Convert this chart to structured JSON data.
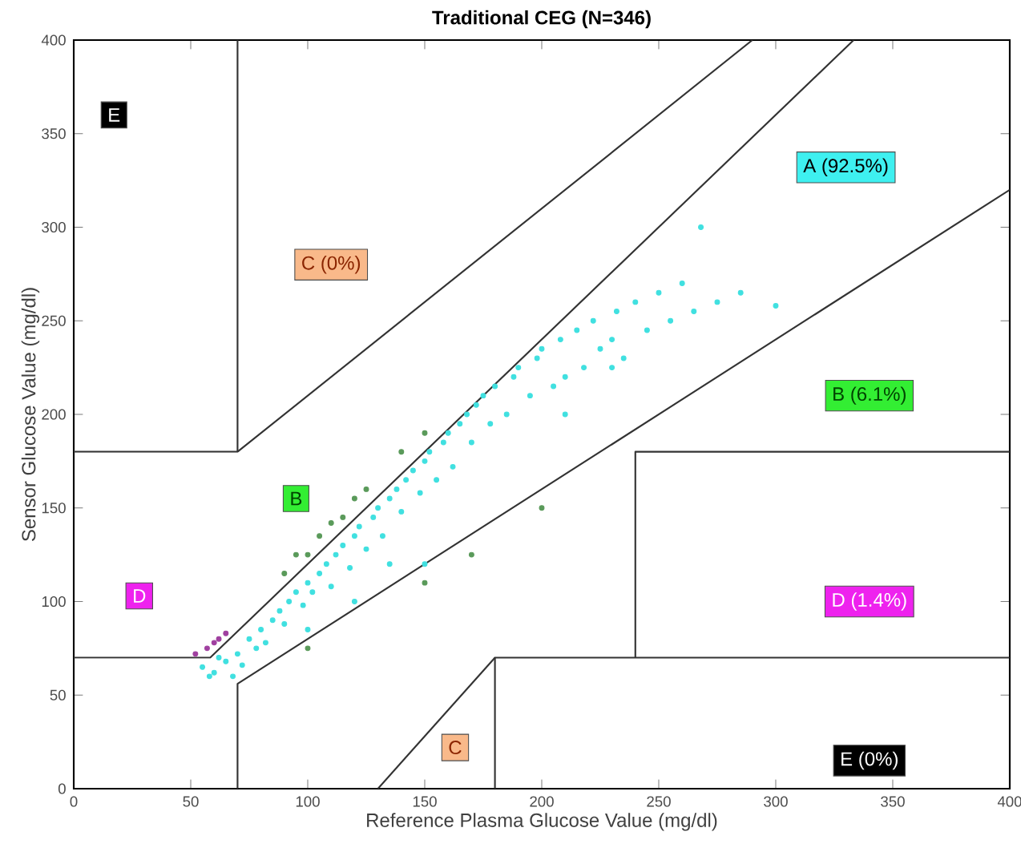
{
  "chart_data": {
    "type": "scatter",
    "title": "Traditional CEG (N=346)",
    "xlabel": "Reference Plasma Glucose Value (mg/dl)",
    "ylabel": "Sensor Glucose Value (mg/dl)",
    "xlim": [
      0,
      400
    ],
    "ylim": [
      0,
      400
    ],
    "xticks": [
      0,
      50,
      100,
      150,
      200,
      250,
      300,
      350,
      400
    ],
    "yticks": [
      0,
      50,
      100,
      150,
      200,
      250,
      300,
      350,
      400
    ],
    "grid": false,
    "series": [
      {
        "type": "line",
        "marker": "none",
        "color": "#333333",
        "x": [
          0,
          58.3,
          333.3
        ],
        "values": [
          70,
          70,
          400
        ]
      },
      {
        "type": "line",
        "marker": "none",
        "color": "#333333",
        "x": [
          70,
          70,
          400
        ],
        "values": [
          0,
          56,
          320
        ]
      },
      {
        "type": "line",
        "marker": "none",
        "color": "#333333",
        "x": [
          70,
          70
        ],
        "values": [
          180,
          400
        ]
      },
      {
        "type": "line",
        "marker": "none",
        "color": "#333333",
        "x": [
          0,
          70,
          290
        ],
        "values": [
          180,
          180,
          400
        ]
      },
      {
        "type": "line",
        "marker": "none",
        "color": "#333333",
        "x": [
          400,
          240,
          240
        ],
        "values": [
          180,
          180,
          70
        ]
      },
      {
        "type": "line",
        "marker": "none",
        "color": "#333333",
        "x": [
          400,
          180,
          180
        ],
        "values": [
          70,
          70,
          0
        ]
      },
      {
        "type": "line",
        "marker": "none",
        "color": "#333333",
        "x": [
          130,
          180
        ],
        "values": [
          0,
          70
        ]
      },
      {
        "color": "#40e0e0",
        "x": [
          55,
          58,
          60,
          62,
          65,
          68,
          70,
          72,
          75,
          78,
          80,
          82,
          85,
          88,
          90,
          92,
          95,
          98,
          100,
          102,
          105,
          108,
          110,
          112,
          115,
          118,
          120,
          122,
          125,
          128,
          130,
          132,
          135,
          138,
          140,
          142,
          145,
          148,
          150,
          152,
          155,
          158,
          160,
          162,
          165,
          168,
          170,
          172,
          175,
          178,
          180,
          185,
          188,
          190,
          195,
          198,
          200,
          205,
          208,
          210,
          215,
          218,
          222,
          225,
          230,
          232,
          235,
          240,
          245,
          250,
          255,
          260,
          265,
          268,
          275,
          285,
          300,
          150,
          135,
          120,
          100,
          210,
          230
        ],
        "values": [
          65,
          60,
          62,
          70,
          68,
          60,
          72,
          66,
          80,
          75,
          85,
          78,
          90,
          95,
          88,
          100,
          105,
          98,
          110,
          105,
          115,
          120,
          108,
          125,
          130,
          118,
          135,
          140,
          128,
          145,
          150,
          135,
          155,
          160,
          148,
          165,
          170,
          158,
          175,
          180,
          165,
          185,
          190,
          172,
          195,
          200,
          185,
          205,
          210,
          195,
          215,
          200,
          220,
          225,
          210,
          230,
          235,
          215,
          240,
          220,
          245,
          225,
          250,
          235,
          240,
          255,
          230,
          260,
          245,
          265,
          250,
          270,
          255,
          300,
          260,
          265,
          258,
          120,
          120,
          100,
          85,
          200,
          225
        ]
      },
      {
        "color": "#5a9a5a",
        "x": [
          90,
          95,
          100,
          105,
          110,
          115,
          120,
          125,
          140,
          150,
          100,
          150,
          170,
          200
        ],
        "values": [
          115,
          125,
          125,
          135,
          142,
          145,
          155,
          160,
          180,
          190,
          75,
          110,
          125,
          150
        ]
      },
      {
        "color": "#a040a0",
        "x": [
          52,
          57,
          62,
          65,
          60
        ],
        "values": [
          72,
          75,
          80,
          83,
          78
        ]
      }
    ],
    "annotations": [
      "E",
      "C (0%)",
      "A (92.5%)",
      "B (6.1%)",
      "B",
      "D",
      "D (1.4%)",
      "C",
      "E (0%)"
    ]
  }
}
